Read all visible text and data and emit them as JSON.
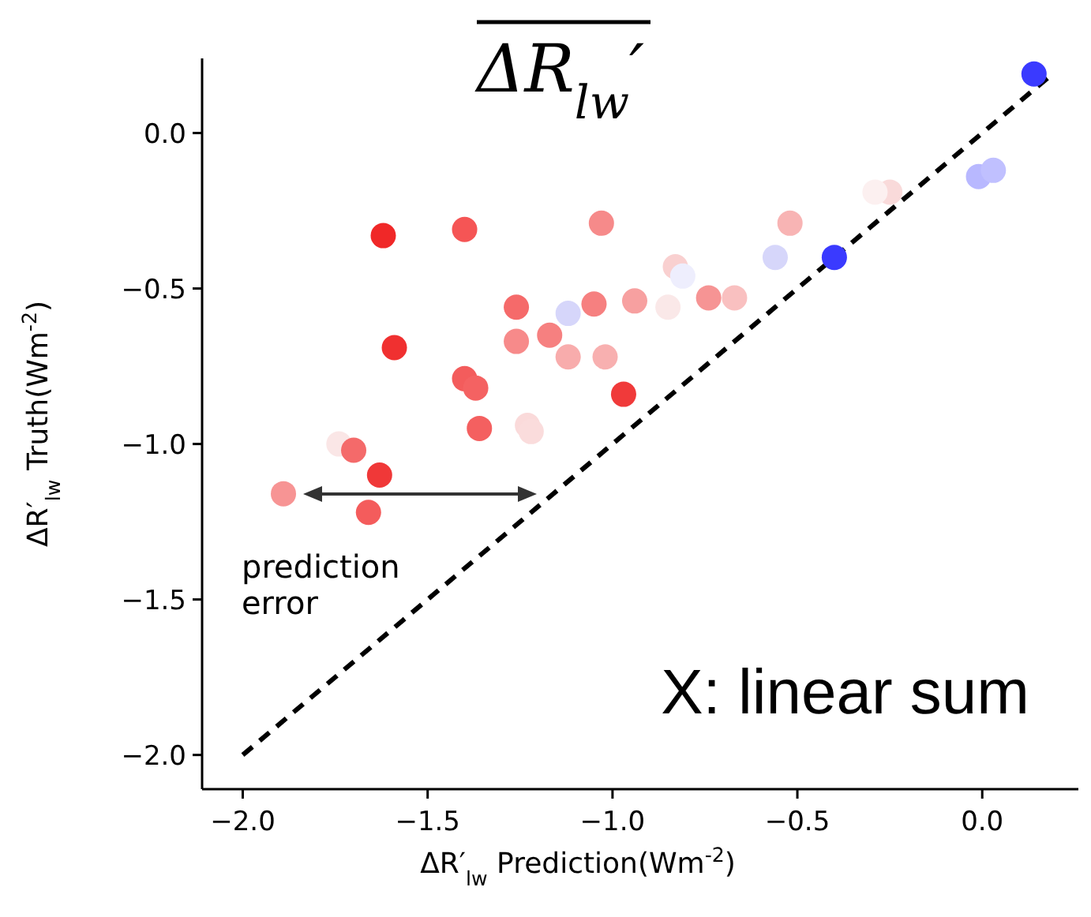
{
  "chart_data": {
    "type": "scatter",
    "title": "ΔR$_{lw}$′",
    "xlabel": "ΔR′$_{lw}$ Prediction(Wm$^{-2}$)",
    "ylabel": "ΔR′$_{lw}$ Truth(Wm$^{-2}$)",
    "xlim": [
      -2.11,
      0.26
    ],
    "ylim": [
      -2.11,
      0.24
    ],
    "xticks": [
      {
        "value": -2,
        "label": "−2.0"
      },
      {
        "value": -1.5,
        "label": "−1.5"
      },
      {
        "value": -1,
        "label": "−1.0"
      },
      {
        "value": -0.5,
        "label": "−0.5"
      },
      {
        "value": 0,
        "label": "0.0"
      }
    ],
    "yticks": [
      {
        "value": -2,
        "label": "−2.0"
      },
      {
        "value": -1.5,
        "label": "−1.5"
      },
      {
        "value": -1,
        "label": "−1.0"
      },
      {
        "value": -0.5,
        "label": "−0.5"
      },
      {
        "value": 0,
        "label": "0.0"
      }
    ],
    "marker": "circle",
    "grid": false,
    "series": [
      {
        "type": "line",
        "marker": "none",
        "color": "#000000",
        "line_style": "dashed",
        "x": [
          -2,
          0.19
        ],
        "values": [
          -2,
          0.19
        ]
      },
      {
        "x": [
          0.14,
          -0.01,
          0.03,
          -0.25,
          -0.29,
          -0.52,
          -0.56,
          -0.4,
          -1.62,
          -1.4,
          -1.03,
          -0.83,
          -0.81,
          -1.26,
          -1.12,
          -1.05,
          -0.94,
          -0.85,
          -0.74,
          -0.67,
          -1.59,
          -1.26,
          -1.17,
          -1.12,
          -1.02,
          -1.4,
          -1.37,
          -0.97,
          -1.36,
          -1.23,
          -1.22,
          -1.74,
          -1.7,
          -1.63,
          -1.89,
          -1.66
        ],
        "values": [
          0.19,
          -0.14,
          -0.12,
          -0.19,
          -0.19,
          -0.29,
          -0.4,
          -0.4,
          -0.33,
          -0.31,
          -0.29,
          -0.43,
          -0.46,
          -0.56,
          -0.58,
          -0.55,
          -0.54,
          -0.56,
          -0.53,
          -0.53,
          -0.69,
          -0.67,
          -0.65,
          -0.72,
          -0.72,
          -0.79,
          -0.82,
          -0.84,
          -0.95,
          -0.94,
          -0.96,
          -1.0,
          -1.02,
          -1.1,
          -1.16,
          -1.22
        ],
        "colors": [
          "#3a3aff",
          "#b8b8ff",
          "#c0c0ff",
          "#f9dada",
          "#fcf0f0",
          "#f8b4b4",
          "#d6d6fa",
          "#3a3aff",
          "#f02828",
          "#f55555",
          "#f68a8a",
          "#f9d0d0",
          "#eeeefd",
          "#f56a6a",
          "#d6d6fa",
          "#f68080",
          "#f7a0a0",
          "#fae8e8",
          "#f69494",
          "#f9c0c0",
          "#f03030",
          "#f78a8a",
          "#f68080",
          "#f8acac",
          "#f8b0b0",
          "#f35c5c",
          "#f46262",
          "#f03a3a",
          "#f46060",
          "#fadada",
          "#fadcdc",
          "#fae6e6",
          "#f46a6a",
          "#f03838",
          "#f79494",
          "#f45c5c"
        ]
      }
    ],
    "annotations": [
      "prediction\nerror",
      "X: linear sum"
    ]
  }
}
